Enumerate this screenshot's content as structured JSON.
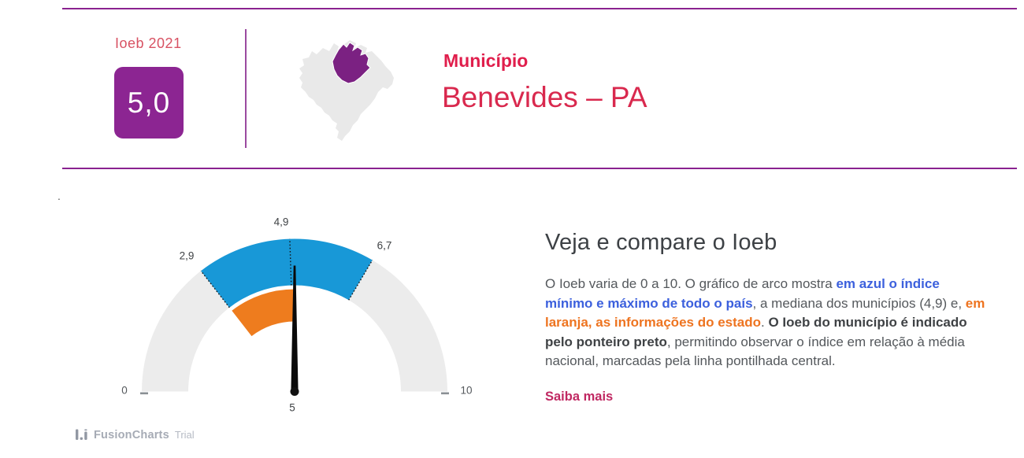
{
  "header": {
    "score_label": "Ioeb 2021",
    "score_value": "5,0",
    "kicker": "Município",
    "title": "Benevides – PA"
  },
  "colors": {
    "accent_purple": "#8c2592",
    "rule_purple": "#8a2290",
    "brand_red": "#e01e4c",
    "arc_blue": "#1898d7",
    "arc_orange": "#ee7c1e",
    "arc_gray": "#ececec",
    "link_pink": "#c02862",
    "state_highlight_purple": "#7b2182"
  },
  "chart_data": {
    "type": "gauge",
    "axis_min": 0,
    "axis_max": 10,
    "axis_min_label": "0",
    "axis_max_label": "10",
    "country_range": {
      "min": 2.9,
      "max": 6.7,
      "color": "#1898d7",
      "label_min": "2,9",
      "label_max": "6,7"
    },
    "median": {
      "value": 4.9,
      "label": "4,9"
    },
    "state_range": {
      "min": 2.9,
      "max": 5.0,
      "color": "#ee7c1e"
    },
    "pointer": {
      "value": 5.0,
      "label": "5",
      "color": "#0a0a0a"
    },
    "legend_note": "azul = país (min/máx), laranja = estado, ponteiro preto = município, linha pontilhada = mediana"
  },
  "info": {
    "heading": "Veja e compare o Ioeb",
    "paragraph": {
      "s1": "O Ioeb varia de 0 a 10. O gráfico de arco mostra ",
      "s2": "em azul o índice mínimo e máximo de todo o país",
      "s3": ", a mediana dos municípios (4,9) e, ",
      "s4": "em laranja, as informações do estado",
      "s5": ". ",
      "s6": "O Ioeb do município é indicado pelo ponteiro preto",
      "s7": ", permitindo observar o índice em relação à média nacional, marcadas pela linha pontilhada central."
    },
    "link_label": "Saiba mais"
  },
  "credit": {
    "brand": "FusionCharts",
    "suffix": "Trial"
  },
  "stray_text": "."
}
